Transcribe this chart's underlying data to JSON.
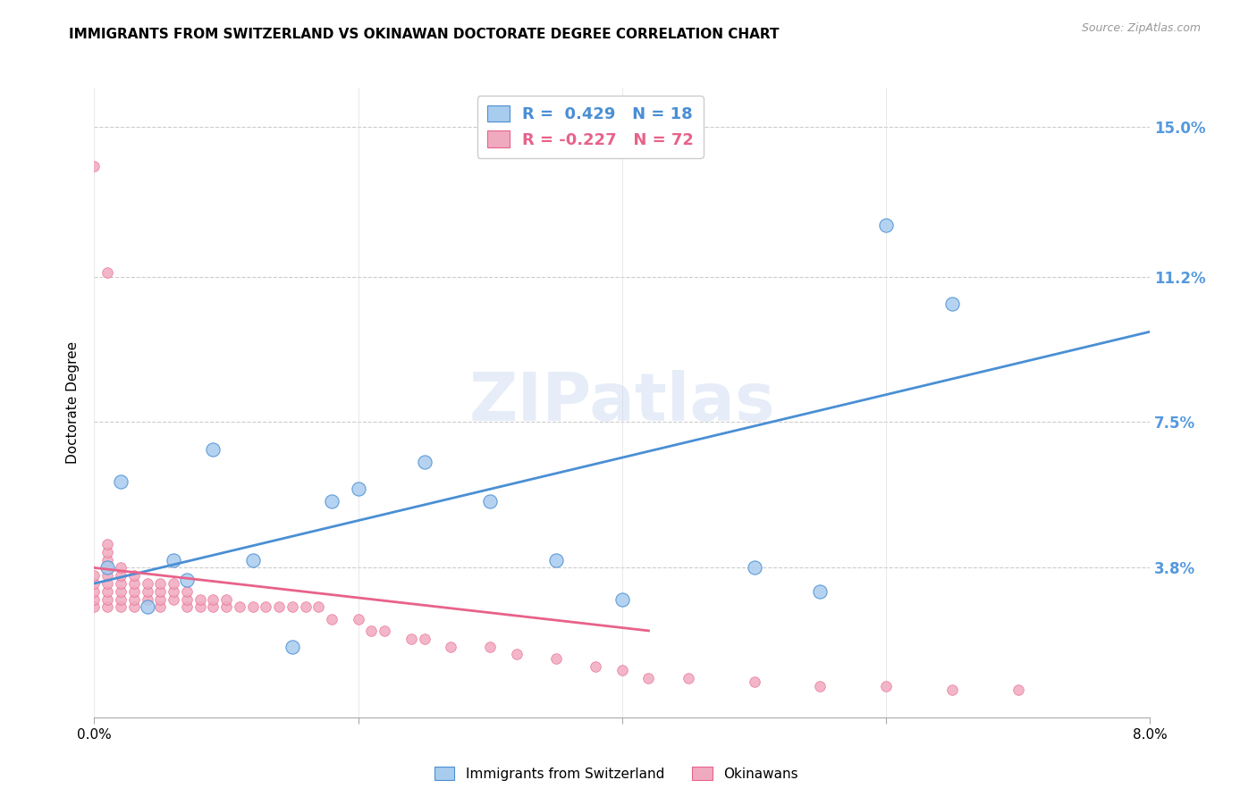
{
  "title": "IMMIGRANTS FROM SWITZERLAND VS OKINAWAN DOCTORATE DEGREE CORRELATION CHART",
  "source": "Source: ZipAtlas.com",
  "ylabel": "Doctorate Degree",
  "watermark": "ZIPatlas",
  "legend_blue": {
    "R": 0.429,
    "N": 18,
    "label": "Immigrants from Switzerland"
  },
  "legend_pink": {
    "R": -0.227,
    "N": 72,
    "label": "Okinawans"
  },
  "xmin": 0.0,
  "xmax": 0.08,
  "ymin": 0.0,
  "ymax": 0.16,
  "yticks": [
    0.0,
    0.038,
    0.075,
    0.112,
    0.15
  ],
  "ytick_labels": [
    "",
    "3.8%",
    "7.5%",
    "11.2%",
    "15.0%"
  ],
  "xticks": [
    0.0,
    0.02,
    0.04,
    0.06,
    0.08
  ],
  "xtick_labels": [
    "0.0%",
    "",
    "",
    "",
    "8.0%"
  ],
  "blue_color": "#A8CCEE",
  "pink_color": "#F0AABF",
  "blue_line_color": "#4A8FD4",
  "pink_line_color": "#E8628A",
  "right_axis_color": "#5599DD",
  "blue_dots_x": [
    0.001,
    0.002,
    0.004,
    0.006,
    0.007,
    0.009,
    0.012,
    0.015,
    0.018,
    0.02,
    0.025,
    0.03,
    0.035,
    0.04,
    0.05,
    0.055,
    0.06,
    0.065
  ],
  "blue_dots_y": [
    0.038,
    0.06,
    0.028,
    0.04,
    0.035,
    0.068,
    0.04,
    0.018,
    0.055,
    0.058,
    0.065,
    0.055,
    0.04,
    0.03,
    0.038,
    0.032,
    0.125,
    0.105
  ],
  "pink_dots_x": [
    0.0,
    0.0,
    0.0,
    0.0,
    0.0,
    0.0,
    0.001,
    0.001,
    0.001,
    0.001,
    0.001,
    0.001,
    0.001,
    0.001,
    0.001,
    0.001,
    0.002,
    0.002,
    0.002,
    0.002,
    0.002,
    0.002,
    0.003,
    0.003,
    0.003,
    0.003,
    0.003,
    0.004,
    0.004,
    0.004,
    0.005,
    0.005,
    0.005,
    0.005,
    0.006,
    0.006,
    0.006,
    0.007,
    0.007,
    0.007,
    0.008,
    0.008,
    0.009,
    0.009,
    0.01,
    0.01,
    0.011,
    0.012,
    0.013,
    0.014,
    0.015,
    0.016,
    0.017,
    0.018,
    0.02,
    0.021,
    0.022,
    0.024,
    0.025,
    0.027,
    0.03,
    0.032,
    0.035,
    0.038,
    0.04,
    0.042,
    0.045,
    0.05,
    0.055,
    0.06,
    0.065,
    0.07
  ],
  "pink_dots_y": [
    0.028,
    0.03,
    0.032,
    0.034,
    0.036,
    0.14,
    0.028,
    0.03,
    0.032,
    0.034,
    0.036,
    0.038,
    0.04,
    0.042,
    0.044,
    0.113,
    0.028,
    0.03,
    0.032,
    0.034,
    0.036,
    0.038,
    0.028,
    0.03,
    0.032,
    0.034,
    0.036,
    0.03,
    0.032,
    0.034,
    0.028,
    0.03,
    0.032,
    0.034,
    0.03,
    0.032,
    0.034,
    0.028,
    0.03,
    0.032,
    0.028,
    0.03,
    0.028,
    0.03,
    0.028,
    0.03,
    0.028,
    0.028,
    0.028,
    0.028,
    0.028,
    0.028,
    0.028,
    0.025,
    0.025,
    0.022,
    0.022,
    0.02,
    0.02,
    0.018,
    0.018,
    0.016,
    0.015,
    0.013,
    0.012,
    0.01,
    0.01,
    0.009,
    0.008,
    0.008,
    0.007,
    0.007
  ],
  "blue_line_x": [
    0.0,
    0.08
  ],
  "blue_line_y": [
    0.034,
    0.098
  ],
  "pink_line_x": [
    0.0,
    0.042
  ],
  "pink_line_y": [
    0.038,
    0.022
  ],
  "dot_size_blue": 120,
  "dot_size_pink": 70,
  "title_fontsize": 11,
  "axis_label_fontsize": 11,
  "tick_fontsize": 11
}
